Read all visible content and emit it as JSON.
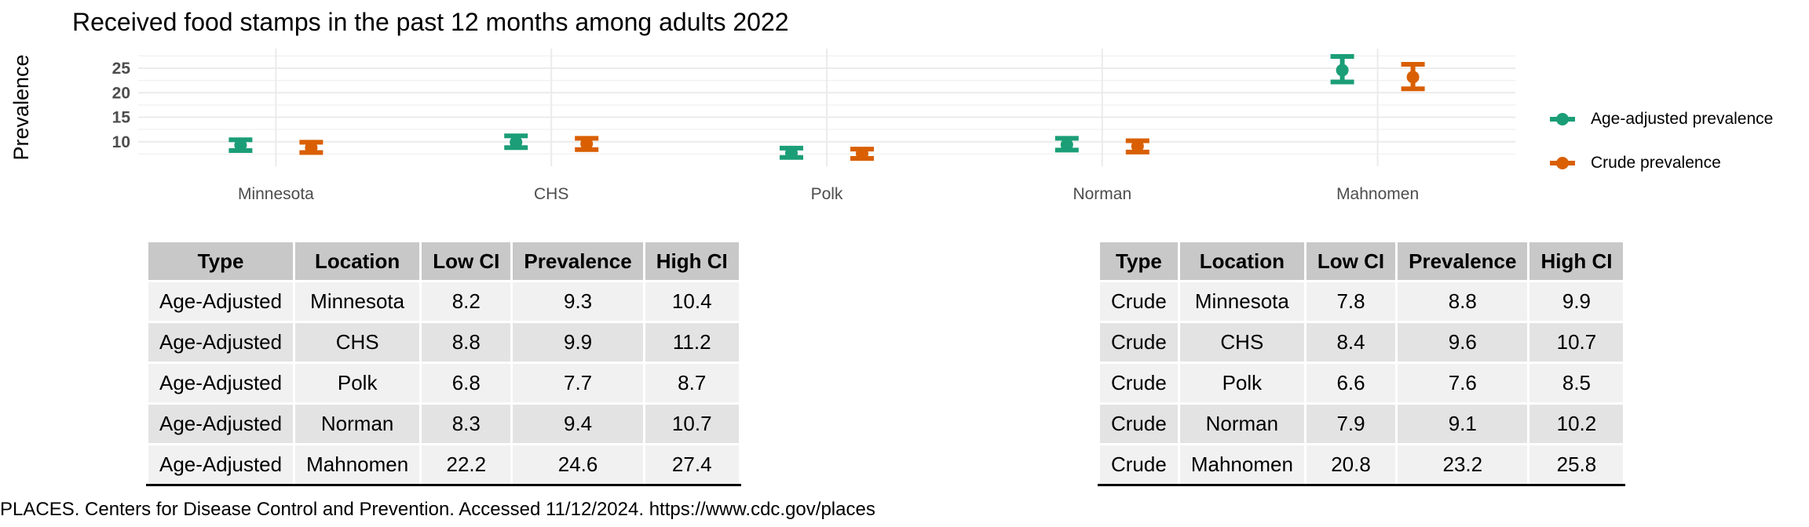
{
  "chart_data": {
    "type": "errorbar",
    "title": "Received food stamps in the past 12 months among adults 2022",
    "xlabel": "",
    "ylabel": "Prevalence",
    "categories": [
      "Minnesota",
      "CHS",
      "Polk",
      "Norman",
      "Mahnomen"
    ],
    "y_ticks": [
      10,
      15,
      20,
      25
    ],
    "ylim": [
      5,
      29
    ],
    "grid": true,
    "legend_position": "right",
    "series": [
      {
        "name": "Age-adjusted prevalence",
        "color": "#1b9e77",
        "values": [
          9.3,
          9.9,
          7.7,
          9.4,
          24.6
        ],
        "low": [
          8.2,
          8.8,
          6.8,
          8.3,
          22.2
        ],
        "high": [
          10.4,
          11.2,
          8.7,
          10.7,
          27.4
        ]
      },
      {
        "name": "Crude prevalence",
        "color": "#d95f02",
        "values": [
          8.8,
          9.6,
          7.6,
          9.1,
          23.2
        ],
        "low": [
          7.8,
          8.4,
          6.6,
          7.9,
          20.8
        ],
        "high": [
          9.9,
          10.7,
          8.5,
          10.2,
          25.8
        ]
      }
    ]
  },
  "tables": {
    "headers": [
      "Type",
      "Location",
      "Low CI",
      "Prevalence",
      "High CI"
    ],
    "left_rows": [
      [
        "Age-Adjusted",
        "Minnesota",
        "8.2",
        "9.3",
        "10.4"
      ],
      [
        "Age-Adjusted",
        "CHS",
        "8.8",
        "9.9",
        "11.2"
      ],
      [
        "Age-Adjusted",
        "Polk",
        "6.8",
        "7.7",
        "8.7"
      ],
      [
        "Age-Adjusted",
        "Norman",
        "8.3",
        "9.4",
        "10.7"
      ],
      [
        "Age-Adjusted",
        "Mahnomen",
        "22.2",
        "24.6",
        "27.4"
      ]
    ],
    "right_rows": [
      [
        "Crude",
        "Minnesota",
        "7.8",
        "8.8",
        "9.9"
      ],
      [
        "Crude",
        "CHS",
        "8.4",
        "9.6",
        "10.7"
      ],
      [
        "Crude",
        "Polk",
        "6.6",
        "7.6",
        "8.5"
      ],
      [
        "Crude",
        "Norman",
        "7.9",
        "9.1",
        "10.2"
      ],
      [
        "Crude",
        "Mahnomen",
        "20.8",
        "23.2",
        "25.8"
      ]
    ]
  },
  "source": "PLACES. Centers for Disease Control and Prevention. Accessed 11/12/2024. https://www.cdc.gov/places"
}
